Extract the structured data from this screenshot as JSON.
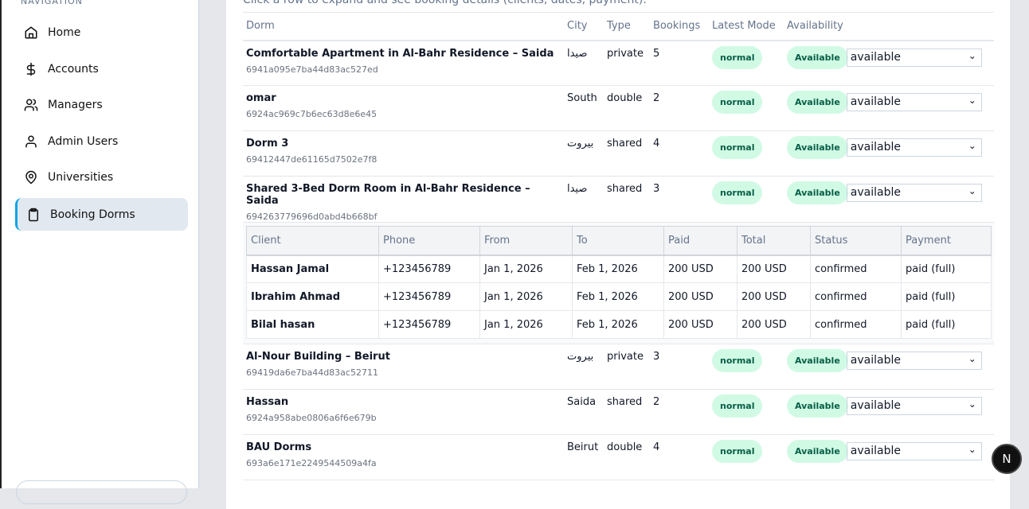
{
  "sidebar": {
    "section_label": "NAVIGATION",
    "items": [
      {
        "label": "Home",
        "icon": "home-icon"
      },
      {
        "label": "Accounts",
        "icon": "dollar-icon"
      },
      {
        "label": "Managers",
        "icon": "users-icon"
      },
      {
        "label": "Admin Users",
        "icon": "user-icon"
      },
      {
        "label": "Universities",
        "icon": "map-pin-icon"
      },
      {
        "label": "Booking Dorms",
        "icon": "clipboard-icon",
        "active": true
      }
    ]
  },
  "main": {
    "hint": "Click a row to expand and see booking details (clients, dates, payment).",
    "columns": [
      "Dorm",
      "City",
      "Type",
      "Bookings",
      "Latest Mode",
      "Availability"
    ],
    "rows": [
      {
        "name": "Comfortable Apartment in Al-Bahr Residence – Saida",
        "id": "6941a095e7ba44d83ac527ed",
        "city": "صيدا",
        "type": "private",
        "bookings": "5",
        "mode": "normal",
        "availability": "Available",
        "select": "available"
      },
      {
        "name": "omar",
        "id": "6924ac969c7b6ec63d8e6e45",
        "city": "South",
        "type": "double",
        "bookings": "2",
        "mode": "normal",
        "availability": "Available",
        "select": "available"
      },
      {
        "name": "Dorm 3",
        "id": "69412447de61165d7502e7f8",
        "city": "بيروت",
        "type": "shared",
        "bookings": "4",
        "mode": "normal",
        "availability": "Available",
        "select": "available"
      },
      {
        "name": "Shared 3-Bed Dorm Room in Al-Bahr Residence – Saida",
        "id": "694263779696d0abd4b668bf",
        "city": "صيدا",
        "type": "shared",
        "bookings": "3",
        "mode": "normal",
        "availability": "Available",
        "select": "available"
      },
      {
        "name": "Al-Nour Building – Beirut",
        "id": "69419da6e7ba44d83ac52711",
        "city": "بيروت",
        "type": "private",
        "bookings": "3",
        "mode": "normal",
        "availability": "Available",
        "select": "available"
      },
      {
        "name": "Hassan",
        "id": "6924a958abe0806a6f6e679b",
        "city": "Saida",
        "type": "shared",
        "bookings": "2",
        "mode": "normal",
        "availability": "Available",
        "select": "available"
      },
      {
        "name": "BAU Dorms",
        "id": "693a6e171e2249544509a4fa",
        "city": "Beirut",
        "type": "double",
        "bookings": "4",
        "mode": "normal",
        "availability": "Available",
        "select": "available"
      }
    ],
    "details": {
      "columns": [
        "Client",
        "Phone",
        "From",
        "To",
        "Paid",
        "Total",
        "Status",
        "Payment"
      ],
      "rows": [
        [
          "Hassan Jamal",
          "+123456789",
          "Jan 1, 2026",
          "Feb 1, 2026",
          "200 USD",
          "200 USD",
          "confirmed",
          "paid (full)"
        ],
        [
          "Ibrahim Ahmad",
          "+123456789",
          "Jan 1, 2026",
          "Feb 1, 2026",
          "200 USD",
          "200 USD",
          "confirmed",
          "paid (full)"
        ],
        [
          "Bilal hasan",
          "+123456789",
          "Jan 1, 2026",
          "Feb 1, 2026",
          "200 USD",
          "200 USD",
          "confirmed",
          "paid (full)"
        ]
      ]
    }
  },
  "badge": {
    "label": "N"
  },
  "colors": {
    "accent": "#0ea5e9",
    "pill_bg": "#d1fae5",
    "pill_text": "#065f46"
  }
}
